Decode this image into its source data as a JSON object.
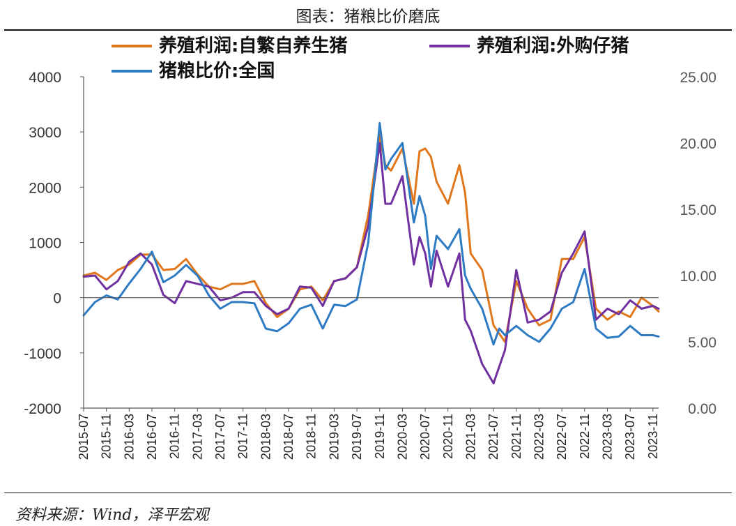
{
  "header": {
    "title": "图表：猪粮比价磨底"
  },
  "footer": {
    "source": "资料来源：Wind，泽平宏观"
  },
  "chart_data": {
    "type": "line",
    "y_left_lim": [
      -2000,
      4000
    ],
    "y_left_ticks": [
      "4000",
      "3000",
      "2000",
      "1000",
      "0",
      "-1000",
      "-2000"
    ],
    "y_right_lim": [
      0,
      25
    ],
    "y_right_ticks": [
      "25.00",
      "20.00",
      "15.00",
      "10.00",
      "5.00",
      "0.00"
    ],
    "x_ticks": [
      "2015-07",
      "2015-11",
      "2016-03",
      "2016-07",
      "2016-11",
      "2017-03",
      "2017-07",
      "2017-11",
      "2018-03",
      "2018-07",
      "2018-11",
      "2019-03",
      "2019-07",
      "2019-11",
      "2020-03",
      "2020-07",
      "2020-11",
      "2021-03",
      "2021-07",
      "2021-11",
      "2022-03",
      "2022-07",
      "2022-11",
      "2023-03",
      "2023-07",
      "2023-11"
    ],
    "legend": [
      {
        "label": "养殖利润:自繁自养生猪",
        "color": "#E0771C"
      },
      {
        "label": "养殖利润:外购仔猪",
        "color": "#7030A0"
      },
      {
        "label": "猪粮比价:全国",
        "color": "#2E7BC4"
      }
    ],
    "series": [
      {
        "name": "养殖利润:自繁自养生猪",
        "axis": "left",
        "color": "#E0771C",
        "x": [
          "2015-07",
          "2015-09",
          "2015-11",
          "2016-01",
          "2016-03",
          "2016-05",
          "2016-07",
          "2016-09",
          "2016-11",
          "2017-01",
          "2017-03",
          "2017-05",
          "2017-07",
          "2017-09",
          "2017-11",
          "2018-01",
          "2018-03",
          "2018-05",
          "2018-07",
          "2018-09",
          "2018-11",
          "2019-01",
          "2019-03",
          "2019-05",
          "2019-07",
          "2019-09",
          "2019-11",
          "2019-12",
          "2020-01",
          "2020-03",
          "2020-05",
          "2020-06",
          "2020-07",
          "2020-08",
          "2020-09",
          "2020-11",
          "2021-01",
          "2021-02",
          "2021-03",
          "2021-05",
          "2021-07",
          "2021-09",
          "2021-11",
          "2022-01",
          "2022-03",
          "2022-05",
          "2022-07",
          "2022-09",
          "2022-11",
          "2023-01",
          "2023-03",
          "2023-05",
          "2023-07",
          "2023-09",
          "2023-11",
          "2023-12"
        ],
        "values": [
          400,
          450,
          320,
          500,
          600,
          780,
          780,
          500,
          520,
          700,
          420,
          200,
          150,
          250,
          250,
          300,
          -100,
          -350,
          -200,
          150,
          200,
          -50,
          300,
          350,
          550,
          1500,
          2950,
          2400,
          2300,
          2700,
          1700,
          2650,
          2700,
          2550,
          2100,
          1700,
          2400,
          1900,
          800,
          500,
          -500,
          -800,
          300,
          -200,
          -500,
          -400,
          700,
          700,
          1100,
          -200,
          -400,
          -250,
          -350,
          0,
          -150,
          -250
        ]
      },
      {
        "name": "养殖利润:外购仔猪",
        "axis": "left",
        "color": "#7030A0",
        "x": [
          "2015-07",
          "2015-09",
          "2015-11",
          "2016-01",
          "2016-03",
          "2016-05",
          "2016-07",
          "2016-09",
          "2016-11",
          "2017-01",
          "2017-03",
          "2017-05",
          "2017-07",
          "2017-09",
          "2017-11",
          "2018-01",
          "2018-03",
          "2018-05",
          "2018-07",
          "2018-09",
          "2018-11",
          "2019-01",
          "2019-03",
          "2019-05",
          "2019-07",
          "2019-09",
          "2019-11",
          "2019-12",
          "2020-01",
          "2020-03",
          "2020-05",
          "2020-06",
          "2020-07",
          "2020-08",
          "2020-09",
          "2020-11",
          "2021-01",
          "2021-02",
          "2021-03",
          "2021-05",
          "2021-07",
          "2021-08",
          "2021-09",
          "2021-11",
          "2022-01",
          "2022-03",
          "2022-05",
          "2022-07",
          "2022-09",
          "2022-11",
          "2023-01",
          "2023-03",
          "2023-05",
          "2023-07",
          "2023-09",
          "2023-11",
          "2023-12"
        ],
        "values": [
          380,
          400,
          150,
          300,
          650,
          800,
          600,
          50,
          -100,
          300,
          250,
          200,
          -50,
          0,
          100,
          100,
          -150,
          -300,
          -200,
          200,
          180,
          -150,
          300,
          350,
          550,
          1300,
          2800,
          1700,
          1700,
          2200,
          600,
          1100,
          800,
          200,
          850,
          200,
          800,
          -400,
          -600,
          -1200,
          -1550,
          -1250,
          -950,
          500,
          -450,
          -400,
          -250,
          450,
          800,
          1200,
          -400,
          -200,
          -300,
          -50,
          -200,
          -150,
          -200
        ]
      },
      {
        "name": "猪粮比价:全国",
        "axis": "right",
        "color": "#2E7BC4",
        "x": [
          "2015-07",
          "2015-09",
          "2015-11",
          "2016-01",
          "2016-03",
          "2016-05",
          "2016-07",
          "2016-09",
          "2016-11",
          "2017-01",
          "2017-03",
          "2017-05",
          "2017-07",
          "2017-09",
          "2017-11",
          "2018-01",
          "2018-03",
          "2018-05",
          "2018-07",
          "2018-09",
          "2018-11",
          "2019-01",
          "2019-03",
          "2019-05",
          "2019-07",
          "2019-09",
          "2019-11",
          "2019-12",
          "2020-01",
          "2020-03",
          "2020-05",
          "2020-06",
          "2020-07",
          "2020-08",
          "2020-09",
          "2020-11",
          "2021-01",
          "2021-02",
          "2021-03",
          "2021-05",
          "2021-07",
          "2021-08",
          "2021-09",
          "2021-11",
          "2022-01",
          "2022-03",
          "2022-05",
          "2022-07",
          "2022-09",
          "2022-11",
          "2023-01",
          "2023-03",
          "2023-05",
          "2023-07",
          "2023-09",
          "2023-11",
          "2023-12"
        ],
        "values": [
          7.0,
          8.0,
          8.5,
          8.2,
          9.4,
          10.5,
          11.8,
          9.5,
          10.0,
          10.8,
          10.0,
          8.5,
          7.5,
          8.0,
          8.0,
          7.9,
          6.0,
          5.8,
          6.4,
          7.5,
          7.8,
          6.0,
          7.8,
          7.7,
          8.2,
          12.5,
          21.5,
          18.0,
          18.8,
          20.0,
          14.0,
          16.0,
          14.5,
          10.5,
          13.0,
          12.0,
          13.5,
          10.0,
          9.0,
          7.5,
          4.8,
          6.0,
          5.5,
          6.2,
          5.5,
          5.0,
          6.0,
          7.5,
          8.0,
          10.5,
          6.0,
          5.3,
          5.4,
          6.2,
          5.5,
          5.5,
          5.4
        ]
      }
    ]
  }
}
